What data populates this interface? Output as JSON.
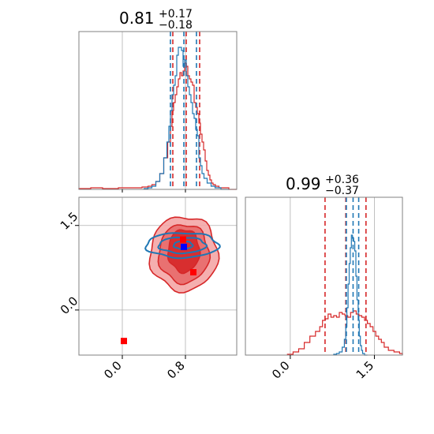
{
  "colors": {
    "red": "#d62728",
    "red_light": "#f4a6a6",
    "blue": "#1f77b4",
    "marker_blue": "#0000ff",
    "marker_red": "#ff0000",
    "grid": "#b0b0b0",
    "spine": "#808080"
  },
  "chart_data": [
    {
      "panel": "top-left",
      "type": "histogram",
      "parameter_index": 0,
      "title": {
        "median": "0.81",
        "plus": "+0.17",
        "minus": "−0.18"
      },
      "xlim": [
        -0.55,
        1.45
      ],
      "ylim": [
        0,
        1
      ],
      "x_gridlines": [
        0.0,
        0.8
      ],
      "series": [
        {
          "name": "",
          "color": "#d62728",
          "step": "mid",
          "x": [
            -0.5,
            -0.3,
            -0.2,
            0.1,
            0.2,
            0.3,
            0.35,
            0.4,
            0.45,
            0.5,
            0.55,
            0.6,
            0.62,
            0.64,
            0.66,
            0.68,
            0.7,
            0.72,
            0.74,
            0.76,
            0.78,
            0.8,
            0.82,
            0.84,
            0.86,
            0.88,
            0.9,
            0.92,
            0.94,
            0.96,
            0.98,
            1.0,
            1.02,
            1.04,
            1.06,
            1.08,
            1.1,
            1.12,
            1.14,
            1.16,
            1.2,
            1.25,
            1.3,
            1.4
          ],
          "values": [
            0.005,
            0.01,
            0.005,
            0.01,
            0.01,
            0.015,
            0.02,
            0.03,
            0.05,
            0.1,
            0.2,
            0.3,
            0.4,
            0.5,
            0.55,
            0.6,
            0.65,
            0.7,
            0.74,
            0.72,
            0.75,
            0.8,
            0.78,
            0.72,
            0.7,
            0.68,
            0.66,
            0.55,
            0.52,
            0.48,
            0.42,
            0.35,
            0.3,
            0.25,
            0.18,
            0.12,
            0.09,
            0.06,
            0.04,
            0.03,
            0.02,
            0.01,
            0.01,
            0.0
          ],
          "quantile_lines": [
            0.64,
            0.81,
            0.98
          ]
        },
        {
          "name": "",
          "color": "#1f77b4",
          "step": "mid",
          "x": [
            0.3,
            0.35,
            0.4,
            0.45,
            0.5,
            0.55,
            0.58,
            0.6,
            0.62,
            0.64,
            0.66,
            0.68,
            0.7,
            0.72,
            0.74,
            0.76,
            0.78,
            0.8,
            0.82,
            0.84,
            0.86,
            0.88,
            0.9,
            0.92,
            0.94,
            0.96,
            0.98,
            1.0,
            1.02,
            1.05,
            1.1,
            1.15,
            1.2,
            1.3
          ],
          "values": [
            0.005,
            0.01,
            0.02,
            0.05,
            0.1,
            0.2,
            0.3,
            0.4,
            0.5,
            0.6,
            0.66,
            0.72,
            0.85,
            0.9,
            0.9,
            0.88,
            0.78,
            0.82,
            0.72,
            0.65,
            0.6,
            0.55,
            0.48,
            0.45,
            0.38,
            0.34,
            0.2,
            0.15,
            0.1,
            0.07,
            0.04,
            0.02,
            0.01,
            0.0
          ],
          "quantile_lines": [
            0.61,
            0.78,
            0.94
          ]
        }
      ]
    },
    {
      "panel": "bottom-left",
      "type": "contour",
      "parameters": [
        0,
        1
      ],
      "xlim": [
        -0.55,
        1.45
      ],
      "ylim": [
        -0.8,
        2.0
      ],
      "x_gridlines": [
        0.0,
        0.8
      ],
      "y_gridlines": [
        0.0,
        1.5
      ],
      "red_levels": [
        {
          "cx": 0.78,
          "cy": 1.0,
          "rx": 0.43,
          "ry": 0.66,
          "rot": 0,
          "fill": "#f4a6a6",
          "stroke": "#d62728"
        },
        {
          "cx": 0.78,
          "cy": 1.0,
          "rx": 0.32,
          "ry": 0.52,
          "rot": 0,
          "fill": "#e86a6a",
          "stroke": "#d62728"
        },
        {
          "cx": 0.78,
          "cy": 1.05,
          "rx": 0.2,
          "ry": 0.38,
          "rot": 0,
          "fill": "#d62728",
          "stroke": "#d62728"
        }
      ],
      "blue_levels": [
        {
          "cx": 0.76,
          "cy": 1.15,
          "rx": 0.46,
          "ry": 0.22,
          "rot": 0
        },
        {
          "cx": 0.76,
          "cy": 1.15,
          "rx": 0.3,
          "ry": 0.14,
          "rot": 0
        },
        {
          "cx": 0.77,
          "cy": 1.15,
          "rx": 0.12,
          "ry": 0.07,
          "rot": 0
        }
      ],
      "markers": [
        {
          "x": 0.78,
          "y": 1.12,
          "color": "#0000ff"
        },
        {
          "x": 0.77,
          "y": 1.25,
          "color": "#ff0000"
        },
        {
          "x": 0.9,
          "y": 0.67,
          "color": "#ff0000"
        },
        {
          "x": 0.02,
          "y": -0.55,
          "color": "#ff0000"
        }
      ],
      "xticks": [
        {
          "value": 0.0,
          "label": "0.0"
        },
        {
          "value": 0.8,
          "label": "0.8"
        }
      ],
      "yticks": [
        {
          "value": 0.0,
          "label": "0.0"
        },
        {
          "value": 1.5,
          "label": "1.5"
        }
      ]
    },
    {
      "panel": "bottom-right",
      "type": "histogram",
      "parameter_index": 1,
      "title": {
        "median": "0.99",
        "plus": "+0.36",
        "minus": "−0.37"
      },
      "xlim": [
        -0.8,
        2.0
      ],
      "ylim": [
        0,
        1
      ],
      "x_gridlines": [
        0.0,
        1.5
      ],
      "xticks": [
        {
          "value": 0.0,
          "label": "0.0"
        },
        {
          "value": 1.5,
          "label": "1.5"
        }
      ],
      "series": [
        {
          "name": "",
          "color": "#d62728",
          "step": "mid",
          "x": [
            0.0,
            0.1,
            0.2,
            0.3,
            0.4,
            0.5,
            0.55,
            0.6,
            0.65,
            0.7,
            0.75,
            0.8,
            0.85,
            0.9,
            0.95,
            1.0,
            1.05,
            1.1,
            1.15,
            1.2,
            1.25,
            1.3,
            1.35,
            1.4,
            1.45,
            1.5,
            1.55,
            1.6,
            1.65,
            1.7,
            1.8,
            1.9,
            2.0
          ],
          "values": [
            0.005,
            0.02,
            0.04,
            0.08,
            0.12,
            0.15,
            0.18,
            0.22,
            0.23,
            0.26,
            0.24,
            0.25,
            0.24,
            0.27,
            0.26,
            0.25,
            0.24,
            0.27,
            0.28,
            0.26,
            0.25,
            0.24,
            0.22,
            0.2,
            0.18,
            0.15,
            0.12,
            0.1,
            0.08,
            0.05,
            0.03,
            0.02,
            0.01
          ],
          "quantile_lines": [
            0.62,
            0.99,
            1.35
          ]
        },
        {
          "name": "",
          "color": "#1f77b4",
          "step": "mid",
          "x": [
            0.8,
            0.85,
            0.9,
            0.95,
            0.98,
            1.0,
            1.02,
            1.04,
            1.06,
            1.08,
            1.1,
            1.12,
            1.14,
            1.16,
            1.18,
            1.2,
            1.22,
            1.24,
            1.26,
            1.28,
            1.3,
            1.35
          ],
          "values": [
            0.005,
            0.01,
            0.02,
            0.05,
            0.1,
            0.18,
            0.3,
            0.45,
            0.58,
            0.68,
            0.76,
            0.74,
            0.72,
            0.66,
            0.5,
            0.35,
            0.22,
            0.12,
            0.06,
            0.03,
            0.01,
            0.0
          ],
          "quantile_lines": [
            1.0,
            1.12,
            1.22
          ]
        }
      ]
    }
  ]
}
